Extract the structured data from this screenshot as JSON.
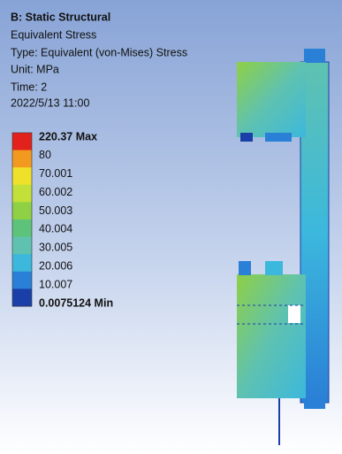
{
  "header": {
    "title": "B: Static Structural",
    "result": "Equivalent Stress",
    "type": "Type: Equivalent (von-Mises) Stress",
    "unit": "Unit: MPa",
    "time": "Time: 2",
    "date": "2022/5/13 11:00"
  },
  "legend": {
    "labels": [
      "220.37 Max",
      "80",
      "70.001",
      "60.002",
      "50.003",
      "40.004",
      "30.005",
      "20.006",
      "10.007",
      "0.0075124 Min"
    ],
    "band_colors": [
      "#e3211c",
      "#f29a1f",
      "#efe12a",
      "#c3e03a",
      "#8fd045",
      "#5dc37a",
      "#5fc2b0",
      "#3cb8dd",
      "#2a7fd6",
      "#1b3fa8"
    ]
  }
}
